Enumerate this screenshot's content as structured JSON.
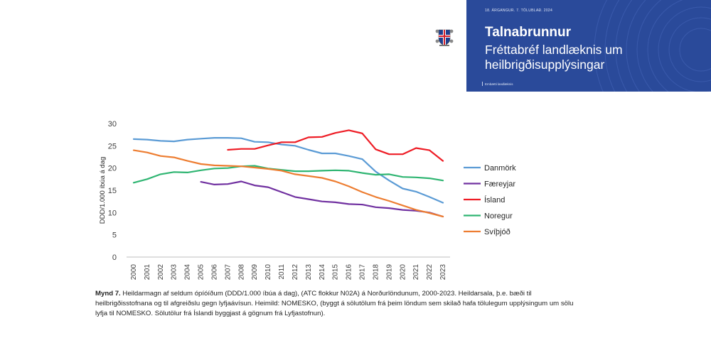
{
  "banner": {
    "kicker": "18. ÁRGANGUR. 7. TÖLUBLAÐ. 2024",
    "title": "Talnabrunnur",
    "subtitle": "Fréttabréf landlæknis um heilbrigðisupplýsingar",
    "org": "Embætti landlæknis",
    "bg_color": "#2a4a9a"
  },
  "crest_icon": "icelandic-coat-of-arms",
  "caption": {
    "label": "Mynd 7.",
    "text": " Heildarmagn af seldum ópíóíðum (DDD/1.000 íbúa á dag), (ATC flokkur N02A) á Norðurlöndunum, 2000-2023. Heildarsala, þ.e. bæði til heilbrigðisstofnana og til afgreiðslu gegn lyfjaávísun. Heimild: NOMESKO, (byggt á sölutölum frá þeim löndum sem skilað hafa tölulegum upplýsingum um sölu lyfja til NOMESKO. Sölutölur frá Íslandi byggjast á gögnum frá Lyfjastofnun)."
  },
  "chart_data": {
    "type": "line",
    "title": "",
    "xlabel": "",
    "ylabel": "DDD/1.000 íbúa á dag",
    "ylim": [
      0,
      30
    ],
    "yticks": [
      0,
      5,
      10,
      15,
      20,
      25,
      30
    ],
    "grid": false,
    "legend_position": "right",
    "x": [
      "2000",
      "2001",
      "2002",
      "2003",
      "2004",
      "2005",
      "2006",
      "2007",
      "2008",
      "2009",
      "2010",
      "2011",
      "2012",
      "2013",
      "2014",
      "2015",
      "2016",
      "2017",
      "2018",
      "2019",
      "2020",
      "2021",
      "2022",
      "2023"
    ],
    "series": [
      {
        "name": "Danmörk",
        "color": "#5b9bd5",
        "values": [
          26.5,
          26.4,
          26.1,
          26.0,
          26.4,
          26.6,
          26.8,
          26.8,
          26.7,
          25.9,
          25.8,
          25.3,
          25.0,
          24.1,
          23.3,
          23.3,
          22.7,
          22.0,
          19.2,
          17.2,
          15.4,
          14.7,
          13.5,
          12.2
        ]
      },
      {
        "name": "Færeyjar",
        "color": "#7030a0",
        "values": [
          null,
          null,
          null,
          null,
          null,
          16.9,
          16.3,
          16.4,
          17.0,
          16.1,
          15.7,
          14.6,
          13.5,
          13.0,
          12.5,
          12.3,
          11.9,
          11.8,
          11.2,
          11.0,
          10.6,
          10.4,
          10.0,
          9.1
        ]
      },
      {
        "name": "Ísland",
        "color": "#ee1c25",
        "values": [
          null,
          null,
          null,
          null,
          null,
          null,
          null,
          24.1,
          24.3,
          24.3,
          25.1,
          25.8,
          25.8,
          26.9,
          27.0,
          27.9,
          28.5,
          27.8,
          24.2,
          23.1,
          23.1,
          24.5,
          24.0,
          21.6
        ]
      },
      {
        "name": "Noregur",
        "color": "#2fb572",
        "values": [
          16.7,
          17.5,
          18.6,
          19.1,
          19.0,
          19.5,
          19.9,
          20.0,
          20.4,
          20.5,
          19.9,
          19.6,
          19.3,
          19.3,
          19.4,
          19.5,
          19.4,
          18.9,
          18.5,
          18.6,
          18.0,
          17.9,
          17.7,
          17.2
        ]
      },
      {
        "name": "Svíþjóð",
        "color": "#ed7d31",
        "values": [
          24.0,
          23.5,
          22.7,
          22.4,
          21.6,
          20.9,
          20.6,
          20.5,
          20.4,
          20.1,
          19.8,
          19.4,
          18.6,
          18.2,
          17.8,
          17.0,
          15.9,
          14.6,
          13.5,
          12.6,
          11.6,
          10.6,
          9.9,
          9.1
        ]
      }
    ]
  }
}
